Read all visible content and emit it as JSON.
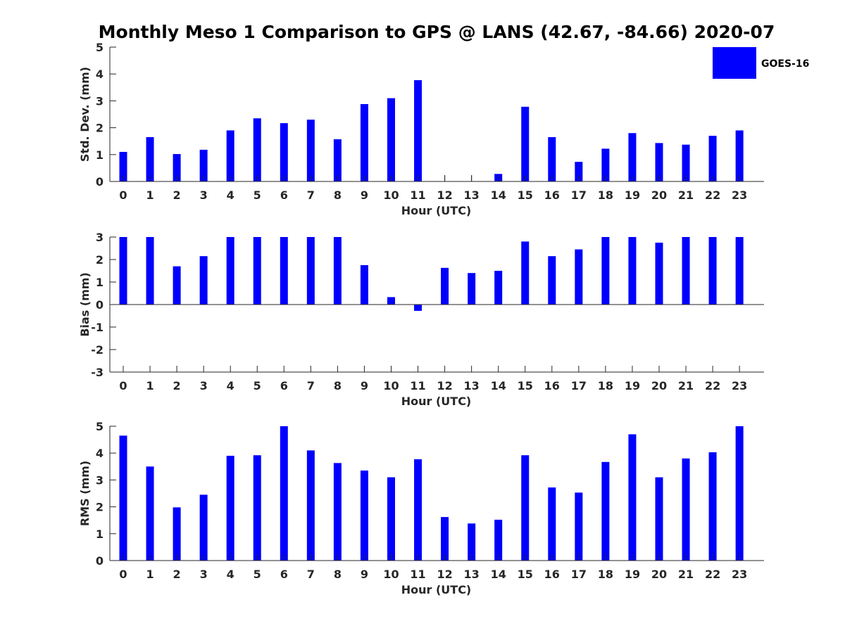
{
  "title": "Monthly Meso 1 Comparison to GPS @ LANS (42.67, -84.66) 2020-07",
  "legend": {
    "label": "GOES-16",
    "color": "#0000ff",
    "placement": "top-right"
  },
  "bar_color": "#0000ff",
  "chart_data": [
    {
      "type": "bar",
      "xlabel": "Hour (UTC)",
      "ylabel": "Std. Dev. (mm)",
      "ylim": [
        0,
        5
      ],
      "yticks": [
        0,
        1,
        2,
        3,
        4,
        5
      ],
      "categories": [
        "0",
        "1",
        "2",
        "3",
        "4",
        "5",
        "6",
        "7",
        "8",
        "9",
        "10",
        "11",
        "12",
        "13",
        "14",
        "15",
        "16",
        "17",
        "18",
        "19",
        "20",
        "21",
        "22",
        "23"
      ],
      "series": [
        {
          "name": "GOES-16",
          "values": [
            1.1,
            1.65,
            1.02,
            1.18,
            1.9,
            2.35,
            2.17,
            2.3,
            1.57,
            2.88,
            3.1,
            3.77,
            0,
            0,
            0.28,
            2.78,
            1.65,
            0.73,
            1.22,
            1.8,
            1.43,
            1.37,
            1.7,
            1.9
          ]
        }
      ],
      "grid": false
    },
    {
      "type": "bar",
      "xlabel": "Hour (UTC)",
      "ylabel": "Bias (mm)",
      "ylim": [
        -3,
        3
      ],
      "yticks": [
        -3,
        -2,
        -1,
        0,
        1,
        2,
        3
      ],
      "categories": [
        "0",
        "1",
        "2",
        "3",
        "4",
        "5",
        "6",
        "7",
        "8",
        "9",
        "10",
        "11",
        "12",
        "13",
        "14",
        "15",
        "16",
        "17",
        "18",
        "19",
        "20",
        "21",
        "22",
        "23"
      ],
      "series": [
        {
          "name": "GOES-16",
          "values": [
            3,
            3,
            1.7,
            2.15,
            3,
            3,
            3,
            3,
            3,
            1.75,
            0.33,
            -0.28,
            1.63,
            1.4,
            1.5,
            2.8,
            2.15,
            2.45,
            3,
            3,
            2.75,
            3,
            3,
            3
          ]
        }
      ],
      "grid": false
    },
    {
      "type": "bar",
      "xlabel": "Hour (UTC)",
      "ylabel": "RMS (mm)",
      "ylim": [
        0,
        5
      ],
      "yticks": [
        0,
        1,
        2,
        3,
        4,
        5
      ],
      "categories": [
        "0",
        "1",
        "2",
        "3",
        "4",
        "5",
        "6",
        "7",
        "8",
        "9",
        "10",
        "11",
        "12",
        "13",
        "14",
        "15",
        "16",
        "17",
        "18",
        "19",
        "20",
        "21",
        "22",
        "23"
      ],
      "series": [
        {
          "name": "GOES-16",
          "values": [
            4.65,
            3.5,
            1.98,
            2.45,
            3.9,
            3.92,
            5,
            4.1,
            3.63,
            3.35,
            3.1,
            3.77,
            1.62,
            1.38,
            1.52,
            3.92,
            2.72,
            2.53,
            3.67,
            4.7,
            3.1,
            3.8,
            4.03,
            5
          ]
        }
      ],
      "grid": false
    }
  ]
}
